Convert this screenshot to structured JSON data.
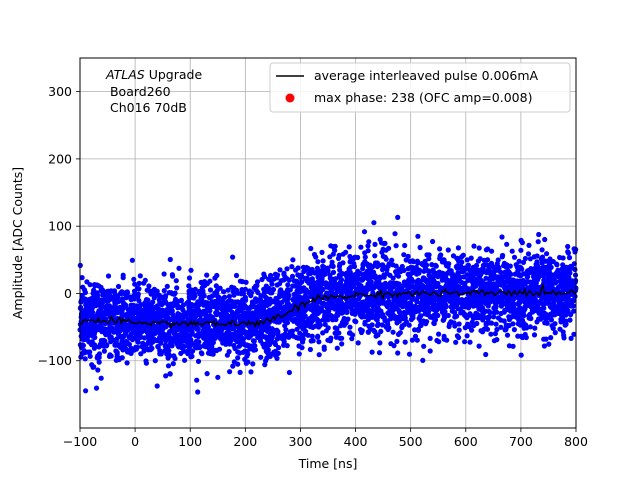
{
  "chart_data": {
    "type": "scatter",
    "xlabel": "Time [ns]",
    "ylabel": "Amplitude [ADC Counts]",
    "xlim": [
      -100,
      800
    ],
    "ylim": [
      -200,
      350
    ],
    "xticks": [
      -100,
      0,
      100,
      200,
      300,
      400,
      500,
      600,
      700,
      800
    ],
    "yticks": [
      -100,
      0,
      100,
      200,
      300
    ],
    "grid": true,
    "legend_position": "top-right",
    "annotation": {
      "line1_italic": "ATLAS",
      "line1_rest": " Upgrade",
      "line2": " Board260",
      "line3": " Ch016 70dB"
    },
    "series": [
      {
        "name": "average interleaved pulse 0.006mA",
        "kind": "line",
        "color": "#000000",
        "x": [
          -100,
          0,
          100,
          200,
          240,
          270,
          300,
          330,
          360,
          400,
          450,
          500,
          600,
          700,
          800
        ],
        "y": [
          -40,
          -43,
          -45,
          -45,
          -42,
          -32,
          -18,
          -8,
          -5,
          -3,
          -1,
          0,
          0,
          1,
          2
        ]
      },
      {
        "name": "max phase: 238 (OFC amp=0.008)",
        "kind": "point",
        "color": "#ff0000",
        "x": [
          238
        ],
        "y": [
          -43
        ]
      },
      {
        "name": "",
        "kind": "samples",
        "color": "#0000ff",
        "spread": 30
      }
    ]
  }
}
